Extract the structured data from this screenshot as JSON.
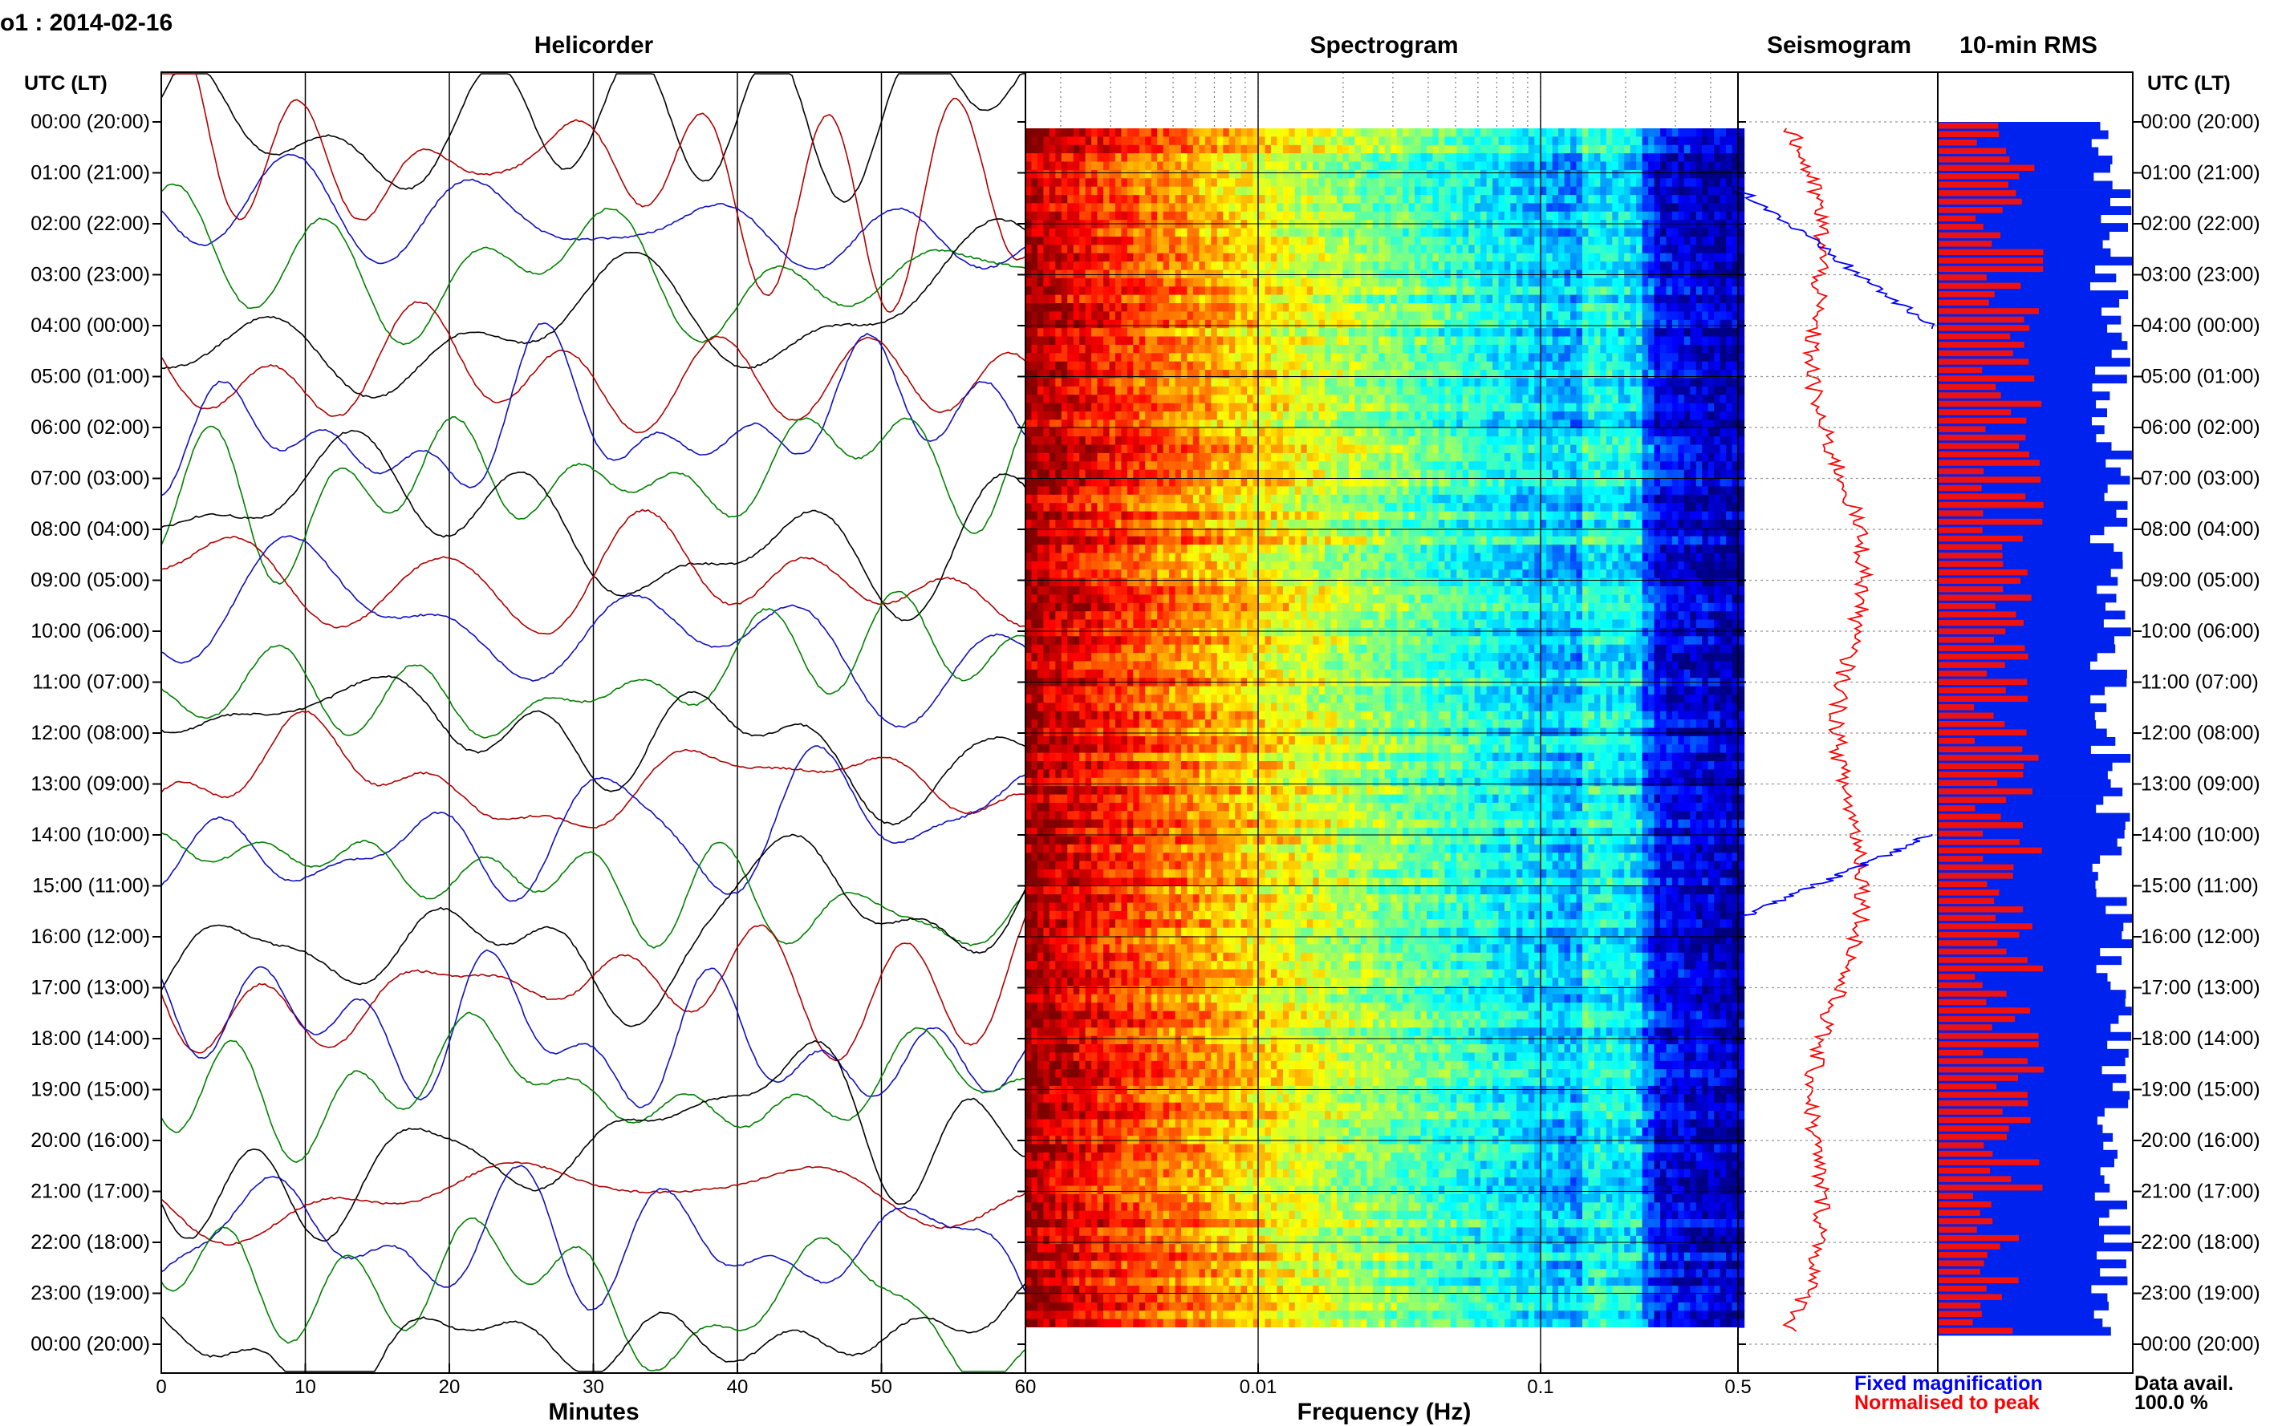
{
  "header": {
    "station_date": "o1 : 2014-02-16",
    "utc_lt_left": "UTC (LT)",
    "utc_lt_right": "UTC (LT)"
  },
  "panels": {
    "helicorder": "Helicorder",
    "spectrogram": "Spectrogram",
    "seismogram": "Seismogram",
    "rms": "10-min RMS"
  },
  "time_labels": [
    "00:00 (20:00)",
    "01:00 (21:00)",
    "02:00 (22:00)",
    "03:00 (23:00)",
    "04:00 (00:00)",
    "05:00 (01:00)",
    "06:00 (02:00)",
    "07:00 (03:00)",
    "08:00 (04:00)",
    "09:00 (05:00)",
    "10:00 (06:00)",
    "11:00 (07:00)",
    "12:00 (08:00)",
    "13:00 (09:00)",
    "14:00 (10:00)",
    "15:00 (11:00)",
    "16:00 (12:00)",
    "17:00 (13:00)",
    "18:00 (14:00)",
    "19:00 (15:00)",
    "20:00 (16:00)",
    "21:00 (17:00)",
    "22:00 (18:00)",
    "23:00 (19:00)",
    "00:00 (20:00)"
  ],
  "helicorder_axis": {
    "label": "Minutes",
    "ticks": [
      "0",
      "10",
      "20",
      "30",
      "40",
      "50",
      "60"
    ]
  },
  "spectrogram_axis": {
    "label": "Frequency (Hz)",
    "ticks": [
      "0.01",
      "0.1",
      "0.5"
    ]
  },
  "legend": {
    "fixed": "Fixed magnification",
    "normalised": "Normalised to peak",
    "data_avail_label": "Data avail.",
    "data_avail_value": "100.0 %"
  },
  "colors": {
    "trace_black": "#000000",
    "trace_red": "#b00000",
    "trace_blue": "#1010c0",
    "trace_green": "#008000",
    "fixed": "#0000ff",
    "normalised": "#ff0000",
    "rms_red": "#ee1111",
    "rms_blue": "#0022ee"
  },
  "chart_data": [
    {
      "type": "line",
      "title": "Helicorder",
      "xlabel": "Minutes",
      "xlim": [
        0,
        60
      ],
      "ylabel": "UTC (LT)",
      "grid": true,
      "rows": 24,
      "trace_colors_cycle": [
        "black",
        "red",
        "blue",
        "green"
      ]
    },
    {
      "type": "heatmap",
      "title": "Spectrogram",
      "xlabel": "Frequency (Hz)",
      "xscale": "log",
      "xlim": [
        0.0015,
        0.5
      ],
      "xticks": [
        0.01,
        0.1,
        0.5
      ],
      "ylabel": "UTC (LT)",
      "colormap": "jet"
    },
    {
      "type": "line",
      "title": "Seismogram",
      "series": [
        {
          "name": "Fixed magnification",
          "color": "#0000ff"
        },
        {
          "name": "Normalised to peak",
          "color": "#ff0000"
        }
      ]
    },
    {
      "type": "bar",
      "title": "10-min RMS",
      "orientation": "horizontal",
      "bins": 144,
      "data_availability_percent": 100.0
    }
  ]
}
